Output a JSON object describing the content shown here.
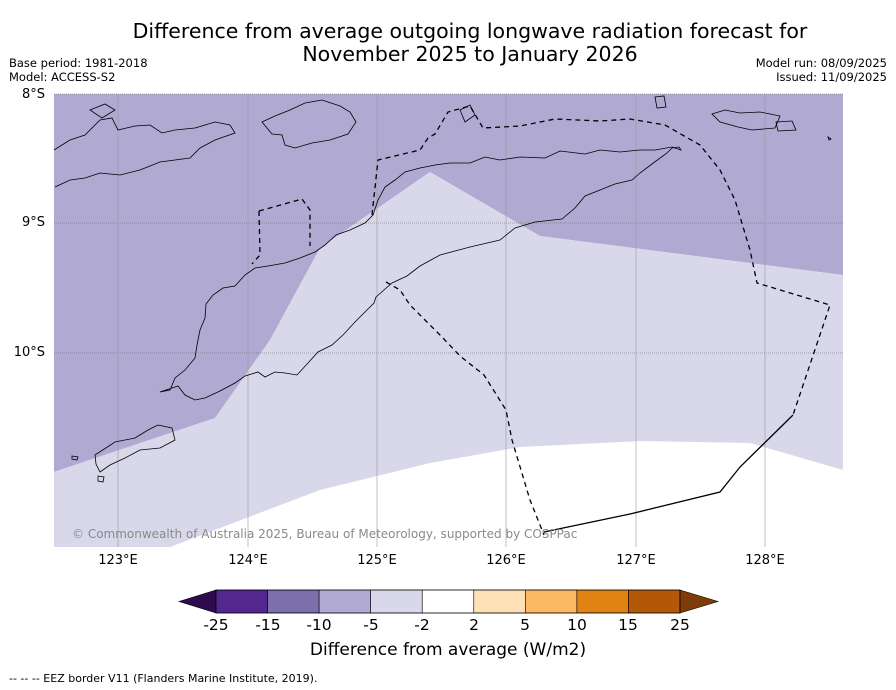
{
  "title_line1": "Difference from average outgoing longwave radiation forecast for",
  "title_line2": "November 2025 to January 2026",
  "meta": {
    "base_period": "Base period: 1981-2018",
    "model": "Model: ACCESS-S2",
    "model_run": "Model run: 08/09/2025",
    "issued": "Issued: 11/09/2025"
  },
  "axes": {
    "lat_labels": [
      "8°S",
      "9°S",
      "10°S"
    ],
    "lon_labels": [
      "123°E",
      "124°E",
      "125°E",
      "126°E",
      "127°E",
      "128°E"
    ]
  },
  "copyright": "© Commonwealth of Australia 2025, Bureau of Meteorology, supported by COSPPac",
  "colorbar": {
    "ticks": [
      "-25",
      "-15",
      "-10",
      "-5",
      "-2",
      "2",
      "5",
      "10",
      "15",
      "25"
    ],
    "colors": [
      "#2e0a4e",
      "#54278f",
      "#7d6fac",
      "#b0a9d2",
      "#d8d8ea",
      "#ffffff",
      "#fee0b6",
      "#fdb863",
      "#e08214",
      "#b35806",
      "#7f3b08"
    ],
    "label": "Difference from average (W/m2)"
  },
  "footer": "--  --  -- EEZ border V11 (Flanders Marine Institute, 2019).",
  "map_fields": {
    "dark_zone_color": "#b0a9d2",
    "light_zone_color": "#d8d8ea",
    "neutral_zone_color": "#ffffff"
  }
}
